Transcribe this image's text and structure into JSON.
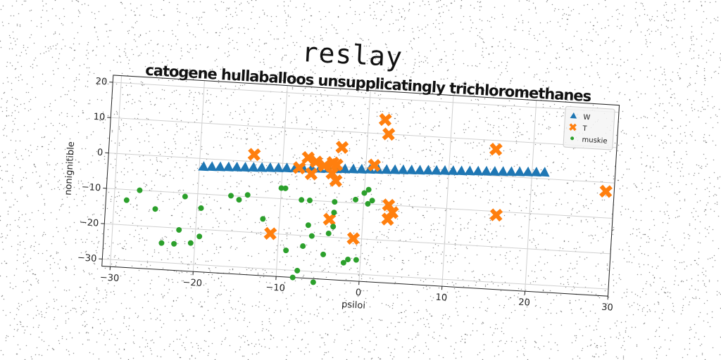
{
  "figure_title": "reslay",
  "chart_data": {
    "type": "scatter",
    "title": "catogene hullaballoos unsupplicatingly trichloromethanes",
    "xlabel": "psiloi",
    "ylabel": "nonignitible",
    "xlim": [
      -31,
      30
    ],
    "ylim": [
      -32,
      22
    ],
    "xticks": [
      -30,
      -20,
      -10,
      0,
      10,
      20,
      30
    ],
    "yticks": [
      -30,
      -20,
      -10,
      0,
      10,
      20
    ],
    "xtick_labels": [
      "−30",
      "−20",
      "−10",
      "0",
      "10",
      "20",
      "30"
    ],
    "ytick_labels": [
      "−30",
      "−20",
      "−10",
      "0",
      "10",
      "20"
    ],
    "grid": true,
    "legend_position": "upper right",
    "series": [
      {
        "name": "W",
        "marker": "triangle",
        "color": "#1f77b4",
        "x": [
          -19.5,
          -18.5,
          -17.5,
          -16.5,
          -15.5,
          -14.5,
          -13.5,
          -12.5,
          -11.5,
          -10.5,
          -9.5,
          -8.5,
          -7.5,
          -6.5,
          -5.5,
          -4.5,
          -3.5,
          -2.5,
          -1.5,
          -0.5,
          0.5,
          1.5,
          2.5,
          3.5,
          4.5,
          5.5,
          6.5,
          7.5,
          8.5,
          9.5,
          10.5,
          11.5,
          12.5,
          13.5,
          14.5,
          15.5,
          16.5,
          17.5,
          18.5,
          19.5,
          20.5,
          21.5
        ],
        "y": [
          -2.3,
          -2.2,
          -2.1,
          -2.0,
          -1.9,
          -1.8,
          -1.7,
          -1.6,
          -1.5,
          -1.4,
          -1.3,
          -1.2,
          -1.1,
          -1.0,
          -0.9,
          -0.8,
          -0.7,
          -0.6,
          -0.5,
          -0.4,
          -0.3,
          -0.2,
          -0.1,
          0.0,
          0.1,
          0.2,
          0.3,
          0.4,
          0.5,
          0.6,
          0.7,
          0.8,
          0.9,
          1.0,
          1.1,
          1.2,
          1.3,
          1.4,
          1.5,
          1.6,
          1.7,
          1.8
        ]
      },
      {
        "name": "T",
        "marker": "x",
        "color": "#ff7f0e",
        "x": [
          -13.5,
          -7,
          -6,
          -8,
          -5,
          -4,
          -3.5,
          -4,
          -3.5,
          -3,
          -6.5,
          -4,
          -11,
          -1,
          1,
          2,
          2.5,
          3,
          3.5,
          3,
          15.5,
          16,
          29
        ],
        "y": [
          2,
          2,
          1,
          -1,
          0,
          1,
          0.5,
          -2,
          -4,
          5.5,
          -2.5,
          -15,
          -20,
          -20,
          1,
          14,
          10,
          -14,
          -12,
          -10,
          7.5,
          -11,
          -2.5
        ]
      },
      {
        "name": "muskie",
        "marker": "circle",
        "color": "#2ca02c",
        "x": [
          -28.5,
          -27,
          -25,
          -24,
          -22.5,
          -22,
          -21.5,
          -20.5,
          -19.5,
          -19.5,
          -16,
          -15,
          -14,
          -12,
          -10,
          -9.5,
          -9,
          -8,
          -7.5,
          -7,
          -6.5,
          -6,
          -5.5,
          -4.5,
          -4,
          -3.5,
          -3.5,
          -3.5,
          -2,
          -1,
          -1.5,
          -0.5,
          0,
          0.5,
          0.5,
          1,
          -6.5,
          -7.5
        ],
        "y": [
          -13,
          -10,
          -15,
          -24.5,
          -24.5,
          -20.5,
          -11,
          -24,
          -14,
          -22,
          -10,
          -11,
          -9.5,
          -16,
          -7,
          -7,
          -24.5,
          -32,
          -30,
          -23,
          -10,
          -20,
          -33,
          -25,
          -19,
          -17,
          -13,
          -10,
          -27,
          -9,
          -26,
          -26,
          -7,
          -6,
          -10,
          -9,
          -17,
          -10
        ]
      }
    ]
  }
}
